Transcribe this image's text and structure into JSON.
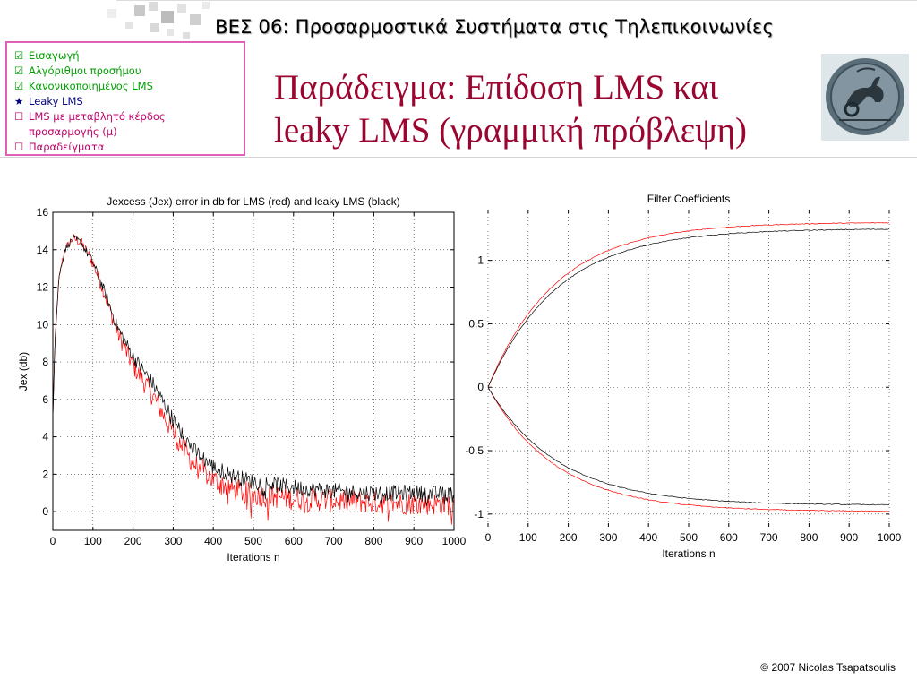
{
  "header": {
    "course_title": "ΒΕΣ 06: Προσαρμοστικά Συστήματα στις Τηλεπικοινωνίες"
  },
  "toc": {
    "items": [
      {
        "mark": "☑",
        "label": "Εισαγωγή",
        "color": "#00a000"
      },
      {
        "mark": "☑",
        "label": "Αλγόριθμοι προσήμου",
        "color": "#00a000"
      },
      {
        "mark": "☑",
        "label": "Κανονικοποιημένος LMS",
        "color": "#00a000"
      },
      {
        "mark": "★",
        "label": "Leaky LMS",
        "color": "#000080"
      },
      {
        "mark": "☐",
        "label": "LMS με μεταβλητό κέρδος",
        "color": "#c0006a"
      },
      {
        "mark": "",
        "label": "προσαρμογής (μ)",
        "color": "#c0006a"
      },
      {
        "mark": "☐",
        "label": "Παραδείγματα",
        "color": "#c0006a"
      }
    ]
  },
  "slide": {
    "title_line1": "Παράδειγμα: Επίδοση LMS και",
    "title_line2": "leaky LMS (γραμμική πρόβλεψη)"
  },
  "footer": {
    "copyright": "© 2007 Nicolas Tsapatsoulis"
  },
  "chart_data": [
    {
      "type": "line",
      "title": "Jexcess (Jex) error in db for LMS (red) and leaky LMS (black)",
      "xlabel": "Iterations n",
      "ylabel": "Jex (db)",
      "xlim": [
        0,
        1000
      ],
      "ylim": [
        -1,
        16
      ],
      "xticks": [
        0,
        100,
        200,
        300,
        400,
        500,
        600,
        700,
        800,
        900,
        1000
      ],
      "yticks": [
        0,
        2,
        4,
        6,
        8,
        10,
        12,
        14,
        16
      ],
      "grid": true,
      "series": [
        {
          "color": "#ff0000",
          "x": [
            0,
            5,
            15,
            30,
            50,
            70,
            100,
            130,
            160,
            200,
            250,
            300,
            350,
            400,
            450,
            500,
            600,
            700,
            800,
            900,
            1000
          ],
          "y": [
            5,
            9,
            12.5,
            14,
            14.6,
            14.4,
            13.3,
            11.6,
            9.6,
            7.8,
            6.2,
            4.2,
            2.6,
            1.7,
            1.2,
            0.9,
            0.7,
            0.6,
            0.5,
            0.45,
            0.4
          ],
          "noise": 0.5
        },
        {
          "color": "#000000",
          "x": [
            0,
            5,
            15,
            30,
            50,
            70,
            100,
            130,
            160,
            200,
            250,
            300,
            350,
            400,
            450,
            500,
            600,
            700,
            800,
            900,
            1000
          ],
          "y": [
            5,
            9,
            12.5,
            14,
            14.6,
            14.4,
            13.3,
            11.7,
            9.9,
            8.3,
            6.8,
            4.9,
            3.3,
            2.4,
            1.9,
            1.6,
            1.3,
            1.1,
            1.0,
            1.0,
            0.9
          ],
          "noise": 0.35
        }
      ]
    },
    {
      "type": "line",
      "title": "Filter Coefficients",
      "xlabel": "Iterations n",
      "ylabel": "",
      "xlim": [
        0,
        1000
      ],
      "ylim": [
        -1.1,
        1.4
      ],
      "xticks": [
        0,
        100,
        200,
        300,
        400,
        500,
        600,
        700,
        800,
        900,
        1000
      ],
      "yticks": [
        -1,
        -0.5,
        0,
        0.5,
        1
      ],
      "grid": true,
      "series": [
        {
          "color": "#ff0000",
          "final": 1.3,
          "tau": 170
        },
        {
          "color": "#000000",
          "final": 1.25,
          "tau": 175
        },
        {
          "color": "#ff0000",
          "final": -0.98,
          "tau": 170
        },
        {
          "color": "#000000",
          "final": -0.93,
          "tau": 175
        }
      ]
    }
  ]
}
